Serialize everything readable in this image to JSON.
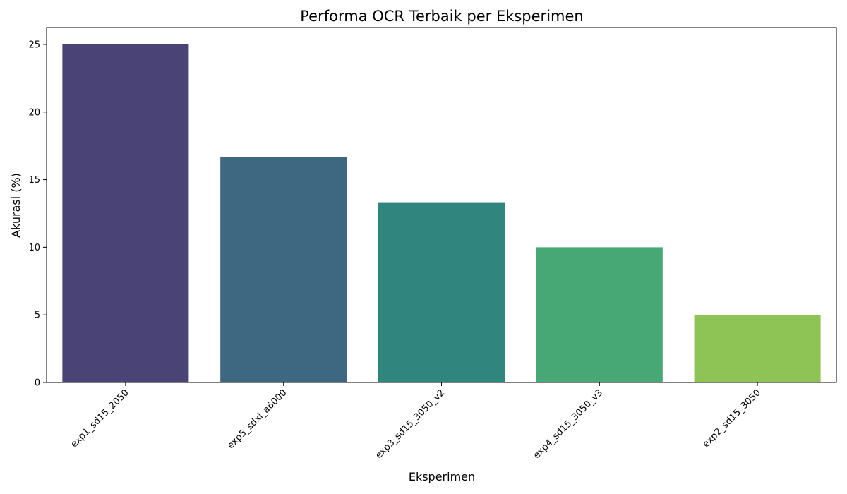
{
  "chart_data": {
    "type": "bar",
    "title": "Performa OCR Terbaik per Eksperimen",
    "xlabel": "Eksperimen",
    "ylabel": "Akurasi (%)",
    "categories": [
      "exp1_sd15_2050",
      "exp5_sdxl_a6000",
      "exp3_sd15_3050_v2",
      "exp4_sd15_3050_v3",
      "exp2_sd15_3050"
    ],
    "values": [
      25.0,
      16.67,
      13.33,
      10.0,
      5.0
    ],
    "colors": [
      "#4a4376",
      "#3e6781",
      "#30857f",
      "#47a876",
      "#8dc455"
    ],
    "ylim": [
      0,
      26.25
    ],
    "yticks": [
      0,
      5,
      10,
      15,
      20,
      25
    ],
    "grid": false,
    "legend": "none"
  }
}
